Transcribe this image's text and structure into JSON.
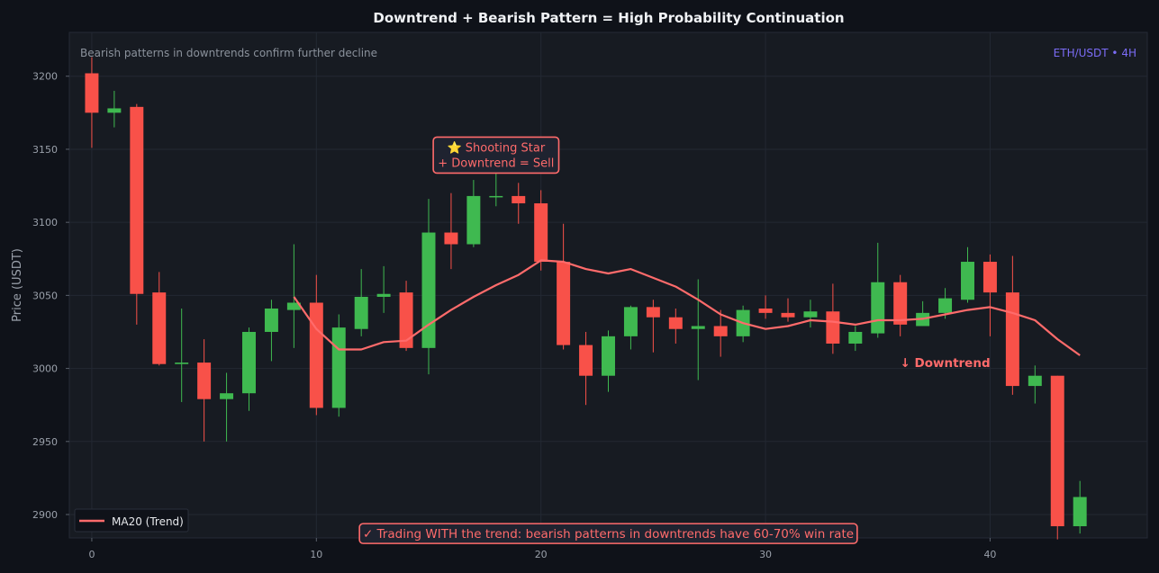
{
  "colors": {
    "page_bg": "#0f1219",
    "plot_bg": "#171b22",
    "grid": "#232833",
    "axis_text": "#9aa0aa",
    "title_text": "#f0f2f5",
    "bull": "#3fb950",
    "bear": "#f85149",
    "ma": "#ff6b6b",
    "annotation": "#ff6b6b",
    "pair": "#7b6cf6",
    "subtitle": "#8b929c",
    "box_bg": "#1f2330",
    "legend_bg": "#0f1219"
  },
  "chart_data": {
    "type": "candlestick",
    "title": "Downtrend + Bearish Pattern = High Probability Continuation",
    "subtitle": "Bearish patterns in downtrends confirm further decline",
    "pair_label": "ETH/USDT • 4H",
    "ylabel": "Price (USDT)",
    "xlabel": "",
    "xlim": [
      -1,
      47
    ],
    "ylim": [
      2884,
      3230
    ],
    "x_ticks": [
      0,
      10,
      20,
      30,
      40
    ],
    "y_ticks": [
      2900,
      2950,
      3000,
      3050,
      3100,
      3150,
      3200
    ],
    "grid": true,
    "legend_position": "bottom-left",
    "candles": [
      {
        "x": 0,
        "o": 3202,
        "h": 3213,
        "l": 3151,
        "c": 3175
      },
      {
        "x": 1,
        "o": 3175,
        "h": 3190,
        "l": 3165,
        "c": 3178
      },
      {
        "x": 2,
        "o": 3179,
        "h": 3181,
        "l": 3030,
        "c": 3051
      },
      {
        "x": 3,
        "o": 3052,
        "h": 3066,
        "l": 3002,
        "c": 3003
      },
      {
        "x": 4,
        "o": 3003,
        "h": 3041,
        "l": 2977,
        "c": 3004
      },
      {
        "x": 5,
        "o": 3004,
        "h": 3020,
        "l": 2950,
        "c": 2979
      },
      {
        "x": 6,
        "o": 2979,
        "h": 2997,
        "l": 2950,
        "c": 2983
      },
      {
        "x": 7,
        "o": 2983,
        "h": 3028,
        "l": 2971,
        "c": 3025
      },
      {
        "x": 8,
        "o": 3025,
        "h": 3047,
        "l": 3005,
        "c": 3041
      },
      {
        "x": 9,
        "o": 3040,
        "h": 3085,
        "l": 3014,
        "c": 3045
      },
      {
        "x": 10,
        "o": 3045,
        "h": 3064,
        "l": 2968,
        "c": 2973
      },
      {
        "x": 11,
        "o": 2973,
        "h": 3037,
        "l": 2967,
        "c": 3028
      },
      {
        "x": 12,
        "o": 3027,
        "h": 3068,
        "l": 3022,
        "c": 3049
      },
      {
        "x": 13,
        "o": 3049,
        "h": 3070,
        "l": 3038,
        "c": 3051
      },
      {
        "x": 14,
        "o": 3052,
        "h": 3060,
        "l": 3012,
        "c": 3014
      },
      {
        "x": 15,
        "o": 3014,
        "h": 3116,
        "l": 2996,
        "c": 3093
      },
      {
        "x": 16,
        "o": 3093,
        "h": 3120,
        "l": 3068,
        "c": 3085
      },
      {
        "x": 17,
        "o": 3085,
        "h": 3129,
        "l": 3083,
        "c": 3118
      },
      {
        "x": 18,
        "o": 3118,
        "h": 3136,
        "l": 3111,
        "c": 3118
      },
      {
        "x": 19,
        "o": 3118,
        "h": 3127,
        "l": 3099,
        "c": 3113
      },
      {
        "x": 20,
        "o": 3113,
        "h": 3122,
        "l": 3067,
        "c": 3073
      },
      {
        "x": 21,
        "o": 3073,
        "h": 3099,
        "l": 3013,
        "c": 3016
      },
      {
        "x": 22,
        "o": 3016,
        "h": 3025,
        "l": 2975,
        "c": 2995
      },
      {
        "x": 23,
        "o": 2995,
        "h": 3026,
        "l": 2984,
        "c": 3022
      },
      {
        "x": 24,
        "o": 3022,
        "h": 3043,
        "l": 3013,
        "c": 3042
      },
      {
        "x": 25,
        "o": 3042,
        "h": 3047,
        "l": 3011,
        "c": 3035
      },
      {
        "x": 26,
        "o": 3035,
        "h": 3041,
        "l": 3017,
        "c": 3027
      },
      {
        "x": 27,
        "o": 3027,
        "h": 3061,
        "l": 2992,
        "c": 3029
      },
      {
        "x": 28,
        "o": 3029,
        "h": 3040,
        "l": 3008,
        "c": 3022
      },
      {
        "x": 29,
        "o": 3022,
        "h": 3043,
        "l": 3018,
        "c": 3040
      },
      {
        "x": 30,
        "o": 3041,
        "h": 3050,
        "l": 3034,
        "c": 3038
      },
      {
        "x": 31,
        "o": 3038,
        "h": 3048,
        "l": 3032,
        "c": 3035
      },
      {
        "x": 32,
        "o": 3035,
        "h": 3047,
        "l": 3028,
        "c": 3039
      },
      {
        "x": 33,
        "o": 3039,
        "h": 3058,
        "l": 3010,
        "c": 3017
      },
      {
        "x": 34,
        "o": 3017,
        "h": 3029,
        "l": 3012,
        "c": 3025
      },
      {
        "x": 35,
        "o": 3024,
        "h": 3086,
        "l": 3021,
        "c": 3059
      },
      {
        "x": 36,
        "o": 3059,
        "h": 3064,
        "l": 3022,
        "c": 3030
      },
      {
        "x": 37,
        "o": 3029,
        "h": 3046,
        "l": 3029,
        "c": 3038
      },
      {
        "x": 38,
        "o": 3038,
        "h": 3055,
        "l": 3034,
        "c": 3048
      },
      {
        "x": 39,
        "o": 3047,
        "h": 3083,
        "l": 3045,
        "c": 3073
      },
      {
        "x": 40,
        "o": 3073,
        "h": 3078,
        "l": 3022,
        "c": 3052
      },
      {
        "x": 41,
        "o": 3052,
        "h": 3077,
        "l": 2982,
        "c": 2988
      },
      {
        "x": 42,
        "o": 2988,
        "h": 3002,
        "l": 2976,
        "c": 2995
      },
      {
        "x": 43,
        "o": 2995,
        "h": 2995,
        "l": 2883,
        "c": 2892
      },
      {
        "x": 44,
        "o": 2892,
        "h": 2923,
        "l": 2887,
        "c": 2912
      }
    ],
    "series": [
      {
        "name": "MA20 (Trend)",
        "x": [
          9,
          10,
          11,
          12,
          13,
          14,
          15,
          16,
          17,
          18,
          19,
          20,
          21,
          22,
          23,
          24,
          25,
          26,
          27,
          28,
          29,
          30,
          31,
          32,
          33,
          34,
          35,
          36,
          37,
          38,
          39,
          40,
          41,
          42,
          43,
          44
        ],
        "values": [
          3049,
          3027,
          3013,
          3013,
          3018,
          3019,
          3030,
          3040,
          3049,
          3057,
          3064,
          3074,
          3073,
          3068,
          3065,
          3068,
          3062,
          3056,
          3047,
          3037,
          3031,
          3027,
          3029,
          3033,
          3032,
          3030,
          3033,
          3033,
          3034,
          3037,
          3040,
          3042,
          3038,
          3033,
          3020,
          3009
        ]
      }
    ],
    "annotations": [
      {
        "lines": [
          "⭐ Shooting Star",
          "+ Downtrend = Sell"
        ],
        "x": 18,
        "y": 3146,
        "boxed": true
      },
      {
        "text": "↓ Downtrend",
        "x": 38,
        "y": 3004,
        "boxed": false
      },
      {
        "text": "✓ Trading WITH the trend: bearish patterns in downtrends have 60-70% win rate",
        "x": 23,
        "y": 2887,
        "boxed": true
      }
    ]
  }
}
